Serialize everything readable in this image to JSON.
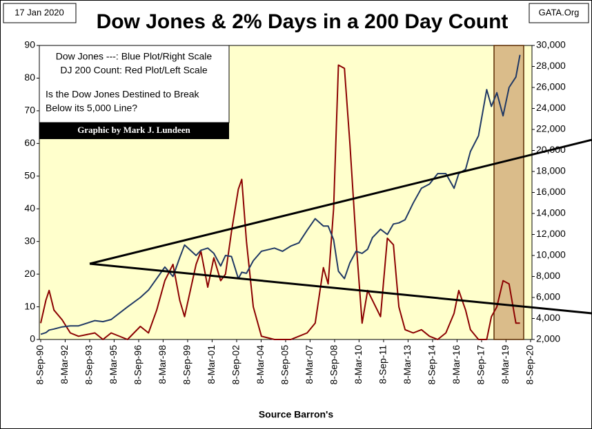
{
  "chart_data": {
    "type": "line",
    "title": "Dow Jones & 2% Days in a 200 Day Count",
    "date_label": "17 Jan 2020",
    "source_site": "GATA.Org",
    "annotations": [
      "Dow Jones ---: Blue Plot/Right Scale",
      "DJ 200 Count: Red Plot/Left Scale",
      "Is the Dow Jones Destined to Break",
      "Below its 5,000 Line?"
    ],
    "credit": "Graphic by Mark J. Lundeen",
    "xlabel": "Source Barron's",
    "x": [
      "1990-09-08",
      "1991-01-01",
      "1991-03-15",
      "1991-07-01",
      "1992-01-01",
      "1992-07-01",
      "1993-01-01",
      "1994-01-01",
      "1994-07-01",
      "1995-01-01",
      "1996-01-01",
      "1996-10-15",
      "1997-04-15",
      "1997-10-15",
      "1998-04-15",
      "1998-10-15",
      "1999-03-15",
      "1999-07-01",
      "2000-03-15",
      "2000-07-01",
      "2000-12-01",
      "2001-04-15",
      "2001-09-15",
      "2002-01-01",
      "2002-05-15",
      "2002-10-15",
      "2003-01-01",
      "2003-04-15",
      "2003-09-15",
      "2004-03-15",
      "2005-01-01",
      "2005-07-01",
      "2006-01-01",
      "2006-07-01",
      "2007-01-01",
      "2007-07-01",
      "2008-01-01",
      "2008-04-15",
      "2008-08-15",
      "2008-12-01",
      "2009-04-15",
      "2009-08-15",
      "2010-01-01",
      "2010-05-15",
      "2010-09-15",
      "2011-01-01",
      "2011-07-01",
      "2011-12-01",
      "2012-04-15",
      "2012-08-15",
      "2013-01-01",
      "2013-07-01",
      "2014-01-01",
      "2014-07-01",
      "2015-01-01",
      "2015-07-01",
      "2016-01-01",
      "2016-04-15",
      "2016-09-15",
      "2017-01-01",
      "2017-07-01",
      "2018-01-01",
      "2018-04-15",
      "2018-08-15",
      "2019-01-01",
      "2019-05-15",
      "2019-10-15",
      "2020-01-15"
    ],
    "series": [
      {
        "color": "#8b0000",
        "axis": "y",
        "values": [
          5,
          12,
          15,
          9,
          6,
          2,
          1,
          2,
          0,
          2,
          0,
          4,
          2,
          9,
          18,
          23,
          12,
          7,
          23,
          27,
          16,
          25,
          18,
          20,
          33,
          46,
          49,
          30,
          10,
          1,
          0,
          0,
          0,
          1,
          2,
          5,
          22,
          17,
          40,
          84,
          83,
          60,
          30,
          5,
          15,
          12,
          7,
          31,
          29,
          10,
          3,
          2,
          3,
          1,
          0,
          2,
          8,
          15,
          9,
          3,
          0,
          0,
          7,
          10,
          18,
          17,
          5,
          5
        ]
      },
      {
        "color": "#1f3864",
        "axis": "y2",
        "values": [
          2500,
          2650,
          2900,
          3000,
          3200,
          3300,
          3300,
          3800,
          3700,
          3900,
          5100,
          6000,
          6700,
          7800,
          8900,
          8000,
          9800,
          11000,
          10000,
          10500,
          10700,
          10200,
          9000,
          10000,
          9900,
          7800,
          8400,
          8300,
          9500,
          10400,
          10700,
          10400,
          10900,
          11200,
          12400,
          13500,
          12800,
          12800,
          11500,
          8500,
          7800,
          9300,
          10400,
          10200,
          10600,
          11700,
          12500,
          12000,
          13000,
          13100,
          13400,
          15000,
          16400,
          16800,
          17800,
          17800,
          16400,
          17800,
          18200,
          19900,
          21400,
          25800,
          24200,
          25500,
          23300,
          26000,
          27000,
          29100
        ]
      }
    ],
    "xlim": [
      "1990-09-08",
      "2020-09-08"
    ],
    "xticks": [
      {
        "value": "1990-09-08",
        "label": "8-Sep-90"
      },
      {
        "value": "1992-03-08",
        "label": "8-Mar-92"
      },
      {
        "value": "1993-09-08",
        "label": "8-Sep-93"
      },
      {
        "value": "1995-03-08",
        "label": "8-Mar-95"
      },
      {
        "value": "1996-09-08",
        "label": "8-Sep-96"
      },
      {
        "value": "1998-03-08",
        "label": "8-Mar-98"
      },
      {
        "value": "1999-09-08",
        "label": "8-Sep-99"
      },
      {
        "value": "2001-03-08",
        "label": "8-Mar-01"
      },
      {
        "value": "2002-09-08",
        "label": "8-Sep-02"
      },
      {
        "value": "2004-03-08",
        "label": "8-Mar-04"
      },
      {
        "value": "2005-09-08",
        "label": "8-Sep-05"
      },
      {
        "value": "2007-03-08",
        "label": "8-Mar-07"
      },
      {
        "value": "2008-09-08",
        "label": "8-Sep-08"
      },
      {
        "value": "2010-03-08",
        "label": "8-Mar-10"
      },
      {
        "value": "2011-09-08",
        "label": "8-Sep-11"
      },
      {
        "value": "2013-03-08",
        "label": "8-Mar-13"
      },
      {
        "value": "2014-09-08",
        "label": "8-Sep-14"
      },
      {
        "value": "2016-03-08",
        "label": "8-Mar-16"
      },
      {
        "value": "2017-09-08",
        "label": "8-Sep-17"
      },
      {
        "value": "2019-03-08",
        "label": "8-Mar-19"
      },
      {
        "value": "2020-09-08",
        "label": "8-Sep-20"
      }
    ],
    "ylim": [
      0,
      90
    ],
    "yticks": [
      0,
      10,
      20,
      30,
      40,
      50,
      60,
      70,
      80,
      90
    ],
    "y2lim": [
      2000,
      30000
    ],
    "y2ticks": [
      {
        "value": 2000,
        "label": "2,000"
      },
      {
        "value": 4000,
        "label": "4,000"
      },
      {
        "value": 6000,
        "label": "6,000"
      },
      {
        "value": 8000,
        "label": "8,000"
      },
      {
        "value": 10000,
        "label": "10,000"
      },
      {
        "value": 12000,
        "label": "12,000"
      },
      {
        "value": 14000,
        "label": "14,000"
      },
      {
        "value": 16000,
        "label": "16,000"
      },
      {
        "value": 18000,
        "label": "18,000"
      },
      {
        "value": 20000,
        "label": "20,000"
      },
      {
        "value": 22000,
        "label": "22,000"
      },
      {
        "value": 24000,
        "label": "24,000"
      },
      {
        "value": 26000,
        "label": "26,000"
      },
      {
        "value": 28000,
        "label": "28,000"
      },
      {
        "value": 30000,
        "label": "30,000"
      }
    ]
  }
}
